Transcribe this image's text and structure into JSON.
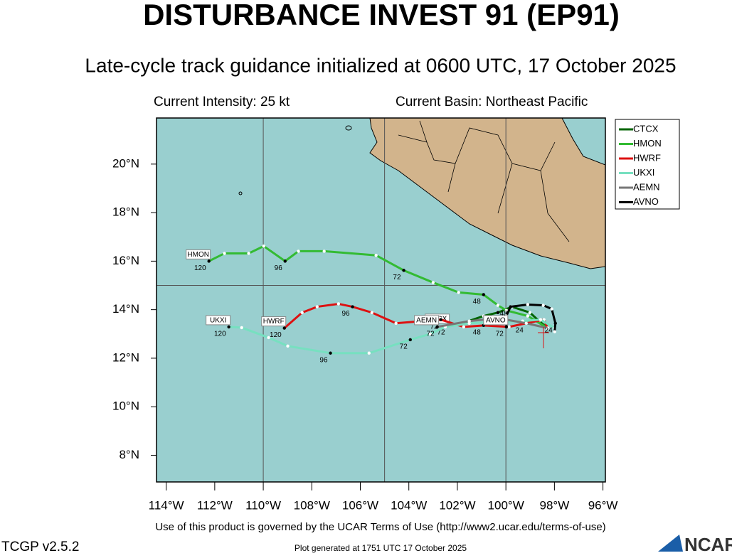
{
  "header": {
    "title": "DISTURBANCE INVEST 91 (EP91)",
    "subtitle": "Late-cycle track guidance initialized at 0600 UTC, 17 October 2025",
    "intensity": "Current Intensity: 25 kt",
    "basin": "Current Basin: Northeast Pacific"
  },
  "chart_data": {
    "type": "track",
    "xlim": [
      -114.4,
      -95.9
    ],
    "ylim": [
      6.9,
      21.9
    ],
    "xticks": [
      {
        "value": -114,
        "label": "114°W"
      },
      {
        "value": -112,
        "label": "112°W"
      },
      {
        "value": -110,
        "label": "110°W"
      },
      {
        "value": -108,
        "label": "108°W"
      },
      {
        "value": -106,
        "label": "106°W"
      },
      {
        "value": -104,
        "label": "104°W"
      },
      {
        "value": -102,
        "label": "102°W"
      },
      {
        "value": -100,
        "label": "100°W"
      },
      {
        "value": -98,
        "label": "98°W"
      },
      {
        "value": -96,
        "label": "96°W"
      }
    ],
    "yticks": [
      {
        "value": 8,
        "label": "8°N"
      },
      {
        "value": 10,
        "label": "10°N"
      },
      {
        "value": 12,
        "label": "12°N"
      },
      {
        "value": 14,
        "label": "14°N"
      },
      {
        "value": 16,
        "label": "16°N"
      },
      {
        "value": 18,
        "label": "18°N"
      },
      {
        "value": 20,
        "label": "20°N"
      }
    ],
    "xgrid": [
      -110,
      -105,
      -100
    ],
    "ygrid": [
      15
    ],
    "series": [
      {
        "name": "CTCX",
        "color": "#006400",
        "x": [
          -98.28,
          -98.63,
          -99.01,
          -99.75,
          -100.33,
          -100.92,
          -101.8,
          -102.39
        ],
        "y": [
          13.24,
          13.53,
          13.88,
          14.12,
          13.88,
          13.74,
          13.44,
          13.35
        ],
        "labels": [
          null,
          null,
          null,
          null,
          "48",
          null,
          null,
          "72"
        ]
      },
      {
        "name": "HMON",
        "color": "#33bb33",
        "x": [
          -98.28,
          -99.1,
          -99.98,
          -100.33,
          -100.92,
          -101.95,
          -103.0,
          -104.21,
          -105.35,
          -107.49,
          -108.55,
          -109.1,
          -109.98,
          -110.6,
          -111.6,
          -112.24
        ],
        "y": [
          13.24,
          13.74,
          13.97,
          14.18,
          14.62,
          14.71,
          15.12,
          15.62,
          16.24,
          16.41,
          16.41,
          16.0,
          16.62,
          16.32,
          16.32,
          16.0
        ],
        "labels": [
          null,
          null,
          null,
          null,
          "48",
          null,
          null,
          "72",
          null,
          null,
          null,
          "96",
          null,
          null,
          null,
          "120"
        ]
      },
      {
        "name": "HWRF",
        "color": "#dd1111",
        "x": [
          -98.28,
          -98.43,
          -99.16,
          -99.87,
          -100.92,
          -101.74,
          -102.68,
          -104.53,
          -105.52,
          -106.32,
          -106.9,
          -107.78,
          -108.4,
          -109.13
        ],
        "y": [
          13.24,
          13.59,
          13.44,
          13.29,
          13.35,
          13.29,
          13.59,
          13.44,
          13.88,
          14.12,
          14.24,
          14.12,
          13.88,
          13.24
        ],
        "labels": [
          null,
          null,
          "24",
          null,
          "48",
          null,
          "72",
          null,
          null,
          "96",
          null,
          null,
          null,
          "120"
        ]
      },
      {
        "name": "UKXI",
        "color": "#77e0c0",
        "x": [
          -97.99,
          -98.57,
          -99.31,
          -100.33,
          -101.51,
          -102.5,
          -103.12,
          -103.94,
          -105.64,
          -107.23,
          -108.99,
          -109.78,
          -110.89,
          -111.42
        ],
        "y": [
          13.24,
          13.59,
          13.53,
          13.5,
          13.44,
          13.29,
          13.0,
          12.76,
          12.21,
          12.21,
          12.5,
          12.85,
          13.26,
          13.29
        ],
        "labels": [
          null,
          null,
          null,
          null,
          null,
          null,
          null,
          "72",
          null,
          "96",
          null,
          null,
          null,
          "120"
        ]
      },
      {
        "name": "AEMN",
        "color": "#777777",
        "x": [
          -98.28,
          -99.16,
          -100.33,
          -101.51,
          -102.83
        ],
        "y": [
          13.24,
          13.44,
          13.65,
          13.53,
          13.29
        ],
        "labels": [
          null,
          null,
          null,
          null,
          "72"
        ]
      },
      {
        "name": "AVNO",
        "color": "#000000",
        "x": [
          -97.99,
          -97.96,
          -98.11,
          -98.46,
          -99.1,
          -99.81,
          -99.98,
          -99.98
        ],
        "y": [
          13.09,
          13.44,
          14.03,
          14.18,
          14.21,
          14.12,
          13.74,
          13.29
        ],
        "labels": [
          null,
          "24",
          null,
          null,
          null,
          "48",
          null,
          "72"
        ]
      }
    ]
  },
  "footer": {
    "terms": "Use of this product is governed by the UCAR Terms of Use (http://www2.ucar.edu/terms-of-use)",
    "version": "TCGP v2.5.2",
    "generated": "Plot generated at 1751 UTC   17 October 2025",
    "logo": "NCAR"
  }
}
